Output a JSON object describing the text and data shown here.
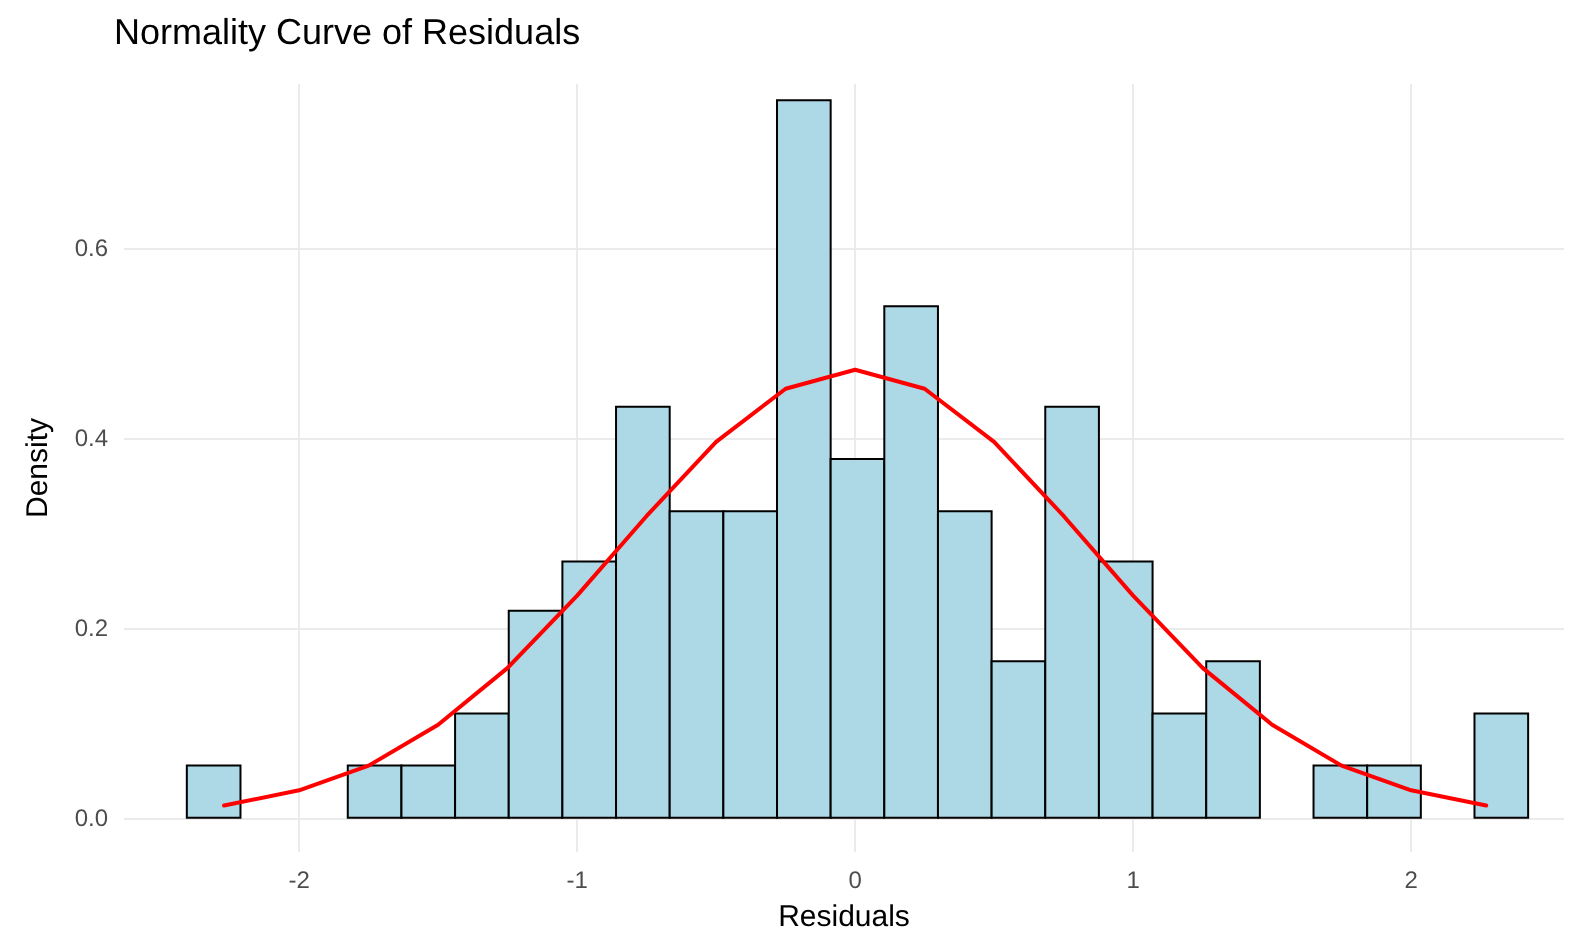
{
  "chart_data": {
    "type": "histogram",
    "title": "Normality Curve of Residuals",
    "xlabel": "Residuals",
    "ylabel": "Density",
    "bins": [
      -2.404,
      -2.211,
      -2.018,
      -1.825,
      -1.632,
      -1.439,
      -1.246,
      -1.053,
      -0.86,
      -0.667,
      -0.474,
      -0.281,
      -0.088,
      0.105,
      0.298,
      0.491,
      0.684,
      0.877,
      1.07,
      1.263,
      1.456,
      1.649,
      1.842,
      2.035,
      2.228,
      2.421
    ],
    "values": [
      0.055,
      0,
      0,
      0.055,
      0.055,
      0.11,
      0.218,
      0.27,
      0.433,
      0.323,
      0.323,
      0.756,
      0.378,
      0.539,
      0.323,
      0.165,
      0.433,
      0.27,
      0.11,
      0.165,
      0,
      0.055,
      0.055,
      0,
      0.11
    ],
    "color": "#add8e6",
    "series": [
      {
        "type": "line",
        "color": "#ff0000",
        "x": [
          -2.27,
          -2,
          -1.75,
          -1.5,
          -1.25,
          -1,
          -0.75,
          -0.5,
          -0.25,
          0,
          0.25,
          0.5,
          0.75,
          1,
          1.25,
          1.5,
          1.75,
          2,
          2.27
        ],
        "values": [
          0.013,
          0.029,
          0.055,
          0.098,
          0.158,
          0.234,
          0.318,
          0.396,
          0.452,
          0.472,
          0.452,
          0.396,
          0.318,
          0.234,
          0.158,
          0.098,
          0.055,
          0.029,
          0.013
        ]
      }
    ],
    "xlim": [
      -2.63,
      2.55
    ],
    "xticks": [
      -2,
      -1,
      0,
      1,
      2
    ],
    "ylim": [
      -0.036,
      0.773
    ],
    "yticks": [
      {
        "value": 0,
        "label": "0.0"
      },
      {
        "value": 0.2,
        "label": "0.2"
      },
      {
        "value": 0.4,
        "label": "0.4"
      },
      {
        "value": 0.6,
        "label": "0.6"
      }
    ],
    "grid": true,
    "marker": "none",
    "line_style": "solid"
  }
}
